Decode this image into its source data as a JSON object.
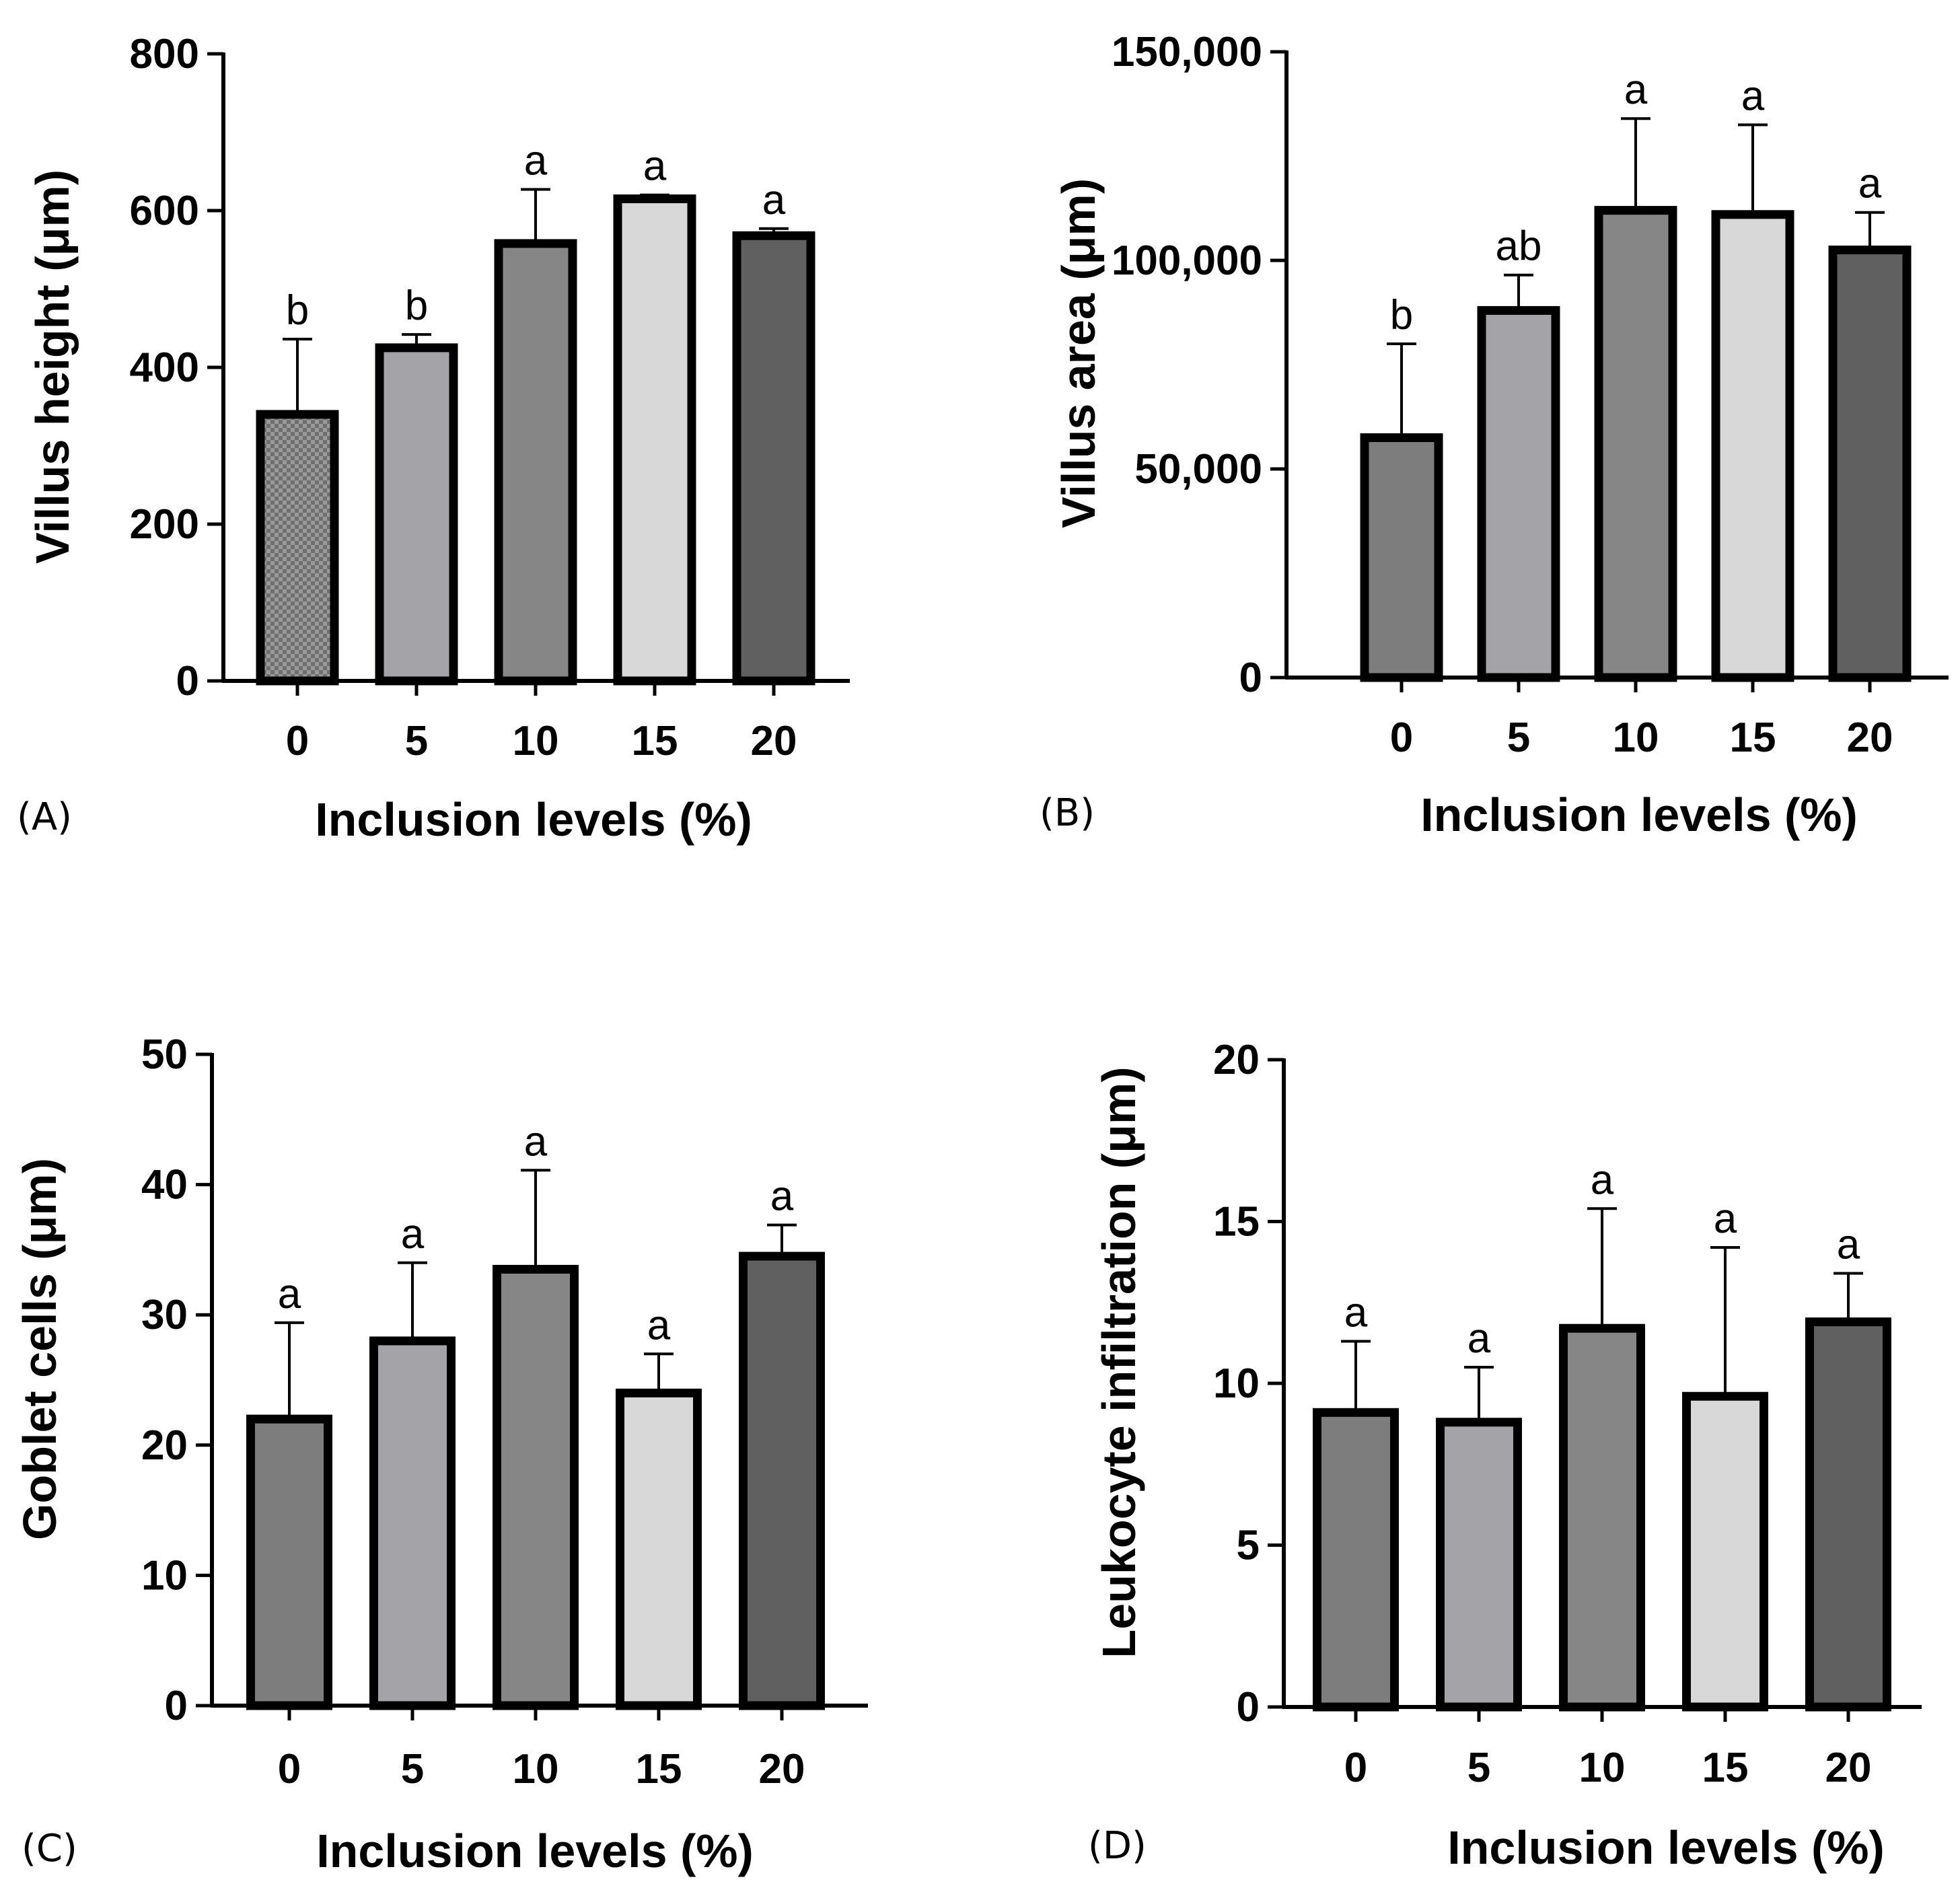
{
  "patterns": {
    "checker_fill": "#6f6f6f",
    "checker_alt": "#9a9a9a"
  },
  "chart_data": [
    {
      "type": "bar",
      "panel_label": "(A)",
      "categories": [
        "0",
        "5",
        "10",
        "15",
        "20"
      ],
      "values": [
        340,
        425,
        558,
        615,
        568
      ],
      "errors": [
        96,
        17,
        69,
        5,
        9
      ],
      "significance": [
        "b",
        "b",
        "a",
        "a",
        "a"
      ],
      "colors": [
        "#7d7d7d",
        "#a3a3a8",
        "#868686",
        "#d8d8d8",
        "#606060"
      ],
      "pattern_first": true,
      "xlabel": "Inclusion levels (%)",
      "ylabel": "Villus height (μm)",
      "ylim": [
        0,
        800
      ],
      "yticks": [
        0,
        200,
        400,
        600,
        800
      ],
      "ytick_labels": [
        "0",
        "200",
        "400",
        "600",
        "800"
      ],
      "grid": false
    },
    {
      "type": "bar",
      "panel_label": "(B)",
      "categories": [
        "0",
        "5",
        "10",
        "15",
        "20"
      ],
      "values": [
        57500,
        88000,
        112000,
        111000,
        102500
      ],
      "errors": [
        22500,
        8500,
        22000,
        21500,
        9000
      ],
      "significance": [
        "b",
        "ab",
        "a",
        "a",
        "a"
      ],
      "colors": [
        "#7d7d7d",
        "#a3a3a8",
        "#868686",
        "#d8d8d8",
        "#606060"
      ],
      "pattern_first": false,
      "xlabel": "Inclusion levels (%)",
      "ylabel": "Villus area (μm)",
      "ylim": [
        0,
        150000
      ],
      "yticks": [
        0,
        50000,
        100000,
        150000
      ],
      "ytick_labels": [
        "0",
        "50,000",
        "100,000",
        "150,000"
      ],
      "grid": false
    },
    {
      "type": "bar",
      "panel_label": "(C)",
      "categories": [
        "0",
        "5",
        "10",
        "15",
        "20"
      ],
      "values": [
        22,
        28,
        33.5,
        24,
        34.5
      ],
      "errors": [
        7.4,
        6,
        7.6,
        3,
        2.4
      ],
      "significance": [
        "a",
        "a",
        "a",
        "a",
        "a"
      ],
      "colors": [
        "#7d7d7d",
        "#a3a3a8",
        "#868686",
        "#d8d8d8",
        "#606060"
      ],
      "pattern_first": false,
      "xlabel": "Inclusion levels (%)",
      "ylabel": "Goblet cells (μm)",
      "ylim": [
        0,
        50
      ],
      "yticks": [
        0,
        10,
        20,
        30,
        40,
        50
      ],
      "ytick_labels": [
        "0",
        "10",
        "20",
        "30",
        "40",
        "50"
      ],
      "grid": false
    },
    {
      "type": "bar",
      "panel_label": "(D)",
      "categories": [
        "0",
        "5",
        "10",
        "15",
        "20"
      ],
      "values": [
        9.1,
        8.8,
        11.7,
        9.6,
        11.9
      ],
      "errors": [
        2.2,
        1.7,
        3.7,
        4.6,
        1.5
      ],
      "significance": [
        "a",
        "a",
        "a",
        "a",
        "a"
      ],
      "colors": [
        "#7d7d7d",
        "#a3a3a8",
        "#868686",
        "#d8d8d8",
        "#606060"
      ],
      "pattern_first": false,
      "xlabel": "Inclusion levels (%)",
      "ylabel": "Leukocyte infiltration (μm)",
      "ylim": [
        0,
        20
      ],
      "yticks": [
        0,
        5,
        10,
        15,
        20
      ],
      "ytick_labels": [
        "0",
        "5",
        "10",
        "15",
        "20"
      ],
      "grid": false
    }
  ]
}
